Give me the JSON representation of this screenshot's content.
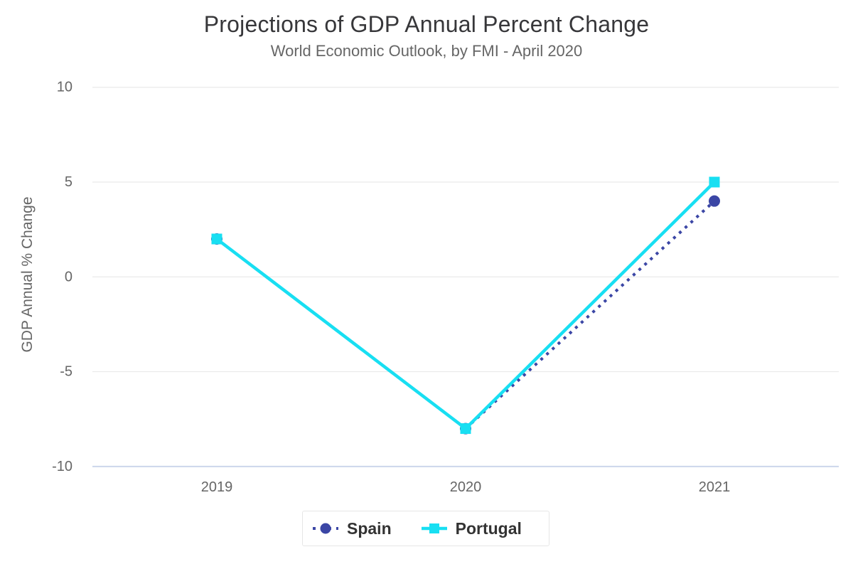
{
  "chart_data": {
    "type": "line",
    "title": "Projections of GDP Annual Percent Change",
    "subtitle": "World Economic Outlook, by FMI - April 2020",
    "xlabel": "",
    "ylabel": "GDP Annual % Change",
    "categories": [
      "2019",
      "2020",
      "2021"
    ],
    "series": [
      {
        "name": "Spain",
        "values": [
          2,
          -8,
          4
        ],
        "color": "#3b46a5",
        "line_style": "dotted",
        "marker": "circle"
      },
      {
        "name": "Portugal",
        "values": [
          2,
          -8,
          5
        ],
        "color": "#18dff2",
        "line_style": "solid",
        "marker": "square"
      }
    ],
    "ylim": [
      -10,
      10
    ],
    "yticks": [
      10,
      5,
      0,
      -5,
      -10
    ],
    "grid": true,
    "legend_position": "bottom-center",
    "colors": {
      "background": "#ffffff",
      "grid_line": "#e6e6e6",
      "axis_line": "#ccd6eb",
      "tick_label": "#666666",
      "title": "#37373a",
      "subtitle": "#666666",
      "axis_title": "#666666",
      "legend_text": "#333333",
      "legend_border": "#e6e6e6"
    }
  }
}
